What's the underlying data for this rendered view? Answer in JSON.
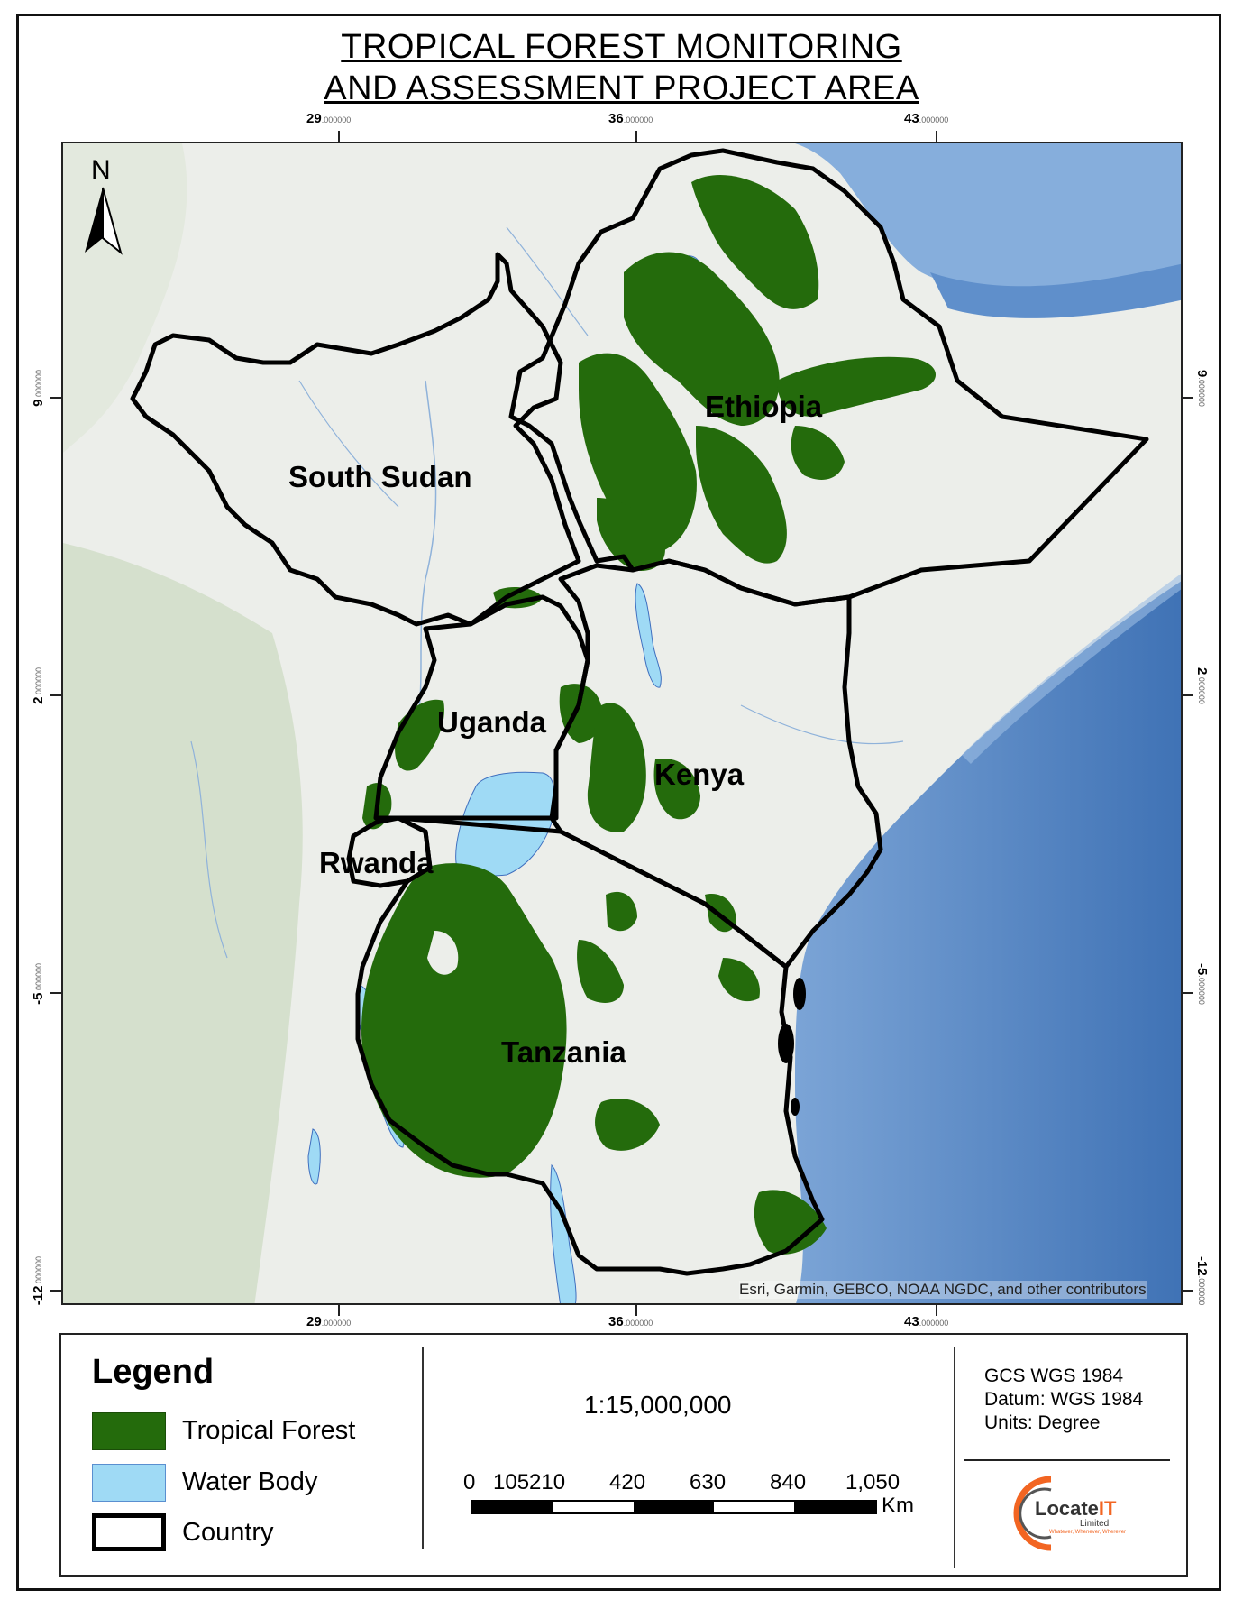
{
  "title": {
    "line1": "TROPICAL FOREST MONITORING",
    "line2": "AND ASSESSMENT PROJECT AREA"
  },
  "north_arrow": {
    "label": "N",
    "icon": "north-arrow-icon"
  },
  "graticule": {
    "top": [
      {
        "deg": "29",
        "dec": ".000000"
      },
      {
        "deg": "36",
        "dec": ".000000"
      },
      {
        "deg": "43",
        "dec": ".000000"
      }
    ],
    "bottom": [
      {
        "deg": "29",
        "dec": ".000000"
      },
      {
        "deg": "36",
        "dec": ".000000"
      },
      {
        "deg": "43",
        "dec": ".000000"
      }
    ],
    "left": [
      {
        "deg": "9",
        "dec": ".000000"
      },
      {
        "deg": "2",
        "dec": ".000000"
      },
      {
        "deg": "-5",
        "dec": ".000000"
      },
      {
        "deg": "-12",
        "dec": ".000000"
      }
    ],
    "right": [
      {
        "deg": "9",
        "dec": ".000000"
      },
      {
        "deg": "2",
        "dec": ".000000"
      },
      {
        "deg": "-5",
        "dec": ".000000"
      },
      {
        "deg": "-12",
        "dec": ".000000"
      }
    ]
  },
  "countries": [
    {
      "name": "Ethiopia"
    },
    {
      "name": "South Sudan"
    },
    {
      "name": "Uganda"
    },
    {
      "name": "Kenya"
    },
    {
      "name": "Rwanda"
    },
    {
      "name": "Tanzania"
    }
  ],
  "attribution": "Esri, Garmin, GEBCO, NOAA NGDC, and other contributors",
  "legend": {
    "title": "Legend",
    "items": [
      {
        "label": "Tropical Forest",
        "color": "#246b0c"
      },
      {
        "label": "Water Body",
        "color": "#9fdaf5"
      },
      {
        "label": "Country",
        "color": "#000000"
      }
    ]
  },
  "scale": {
    "ratio": "1:15,000,000",
    "labels": [
      "0",
      "105",
      "210",
      "420",
      "630",
      "840",
      "1,050"
    ],
    "unit": "Km"
  },
  "crs": {
    "line1": "GCS WGS 1984",
    "line2": "Datum: WGS 1984",
    "line3": "Units: Degree"
  },
  "logo": {
    "brand_main": "Locate",
    "brand_accent": "IT",
    "subtitle": "Limited",
    "tagline": "Whatever, Whenever, Wherever"
  },
  "colors": {
    "forest": "#246b0c",
    "water": "#9fdaf5",
    "ocean": "#4a7ebd",
    "land": "#eceeea",
    "border": "#000000",
    "logo_orange": "#f26522"
  }
}
